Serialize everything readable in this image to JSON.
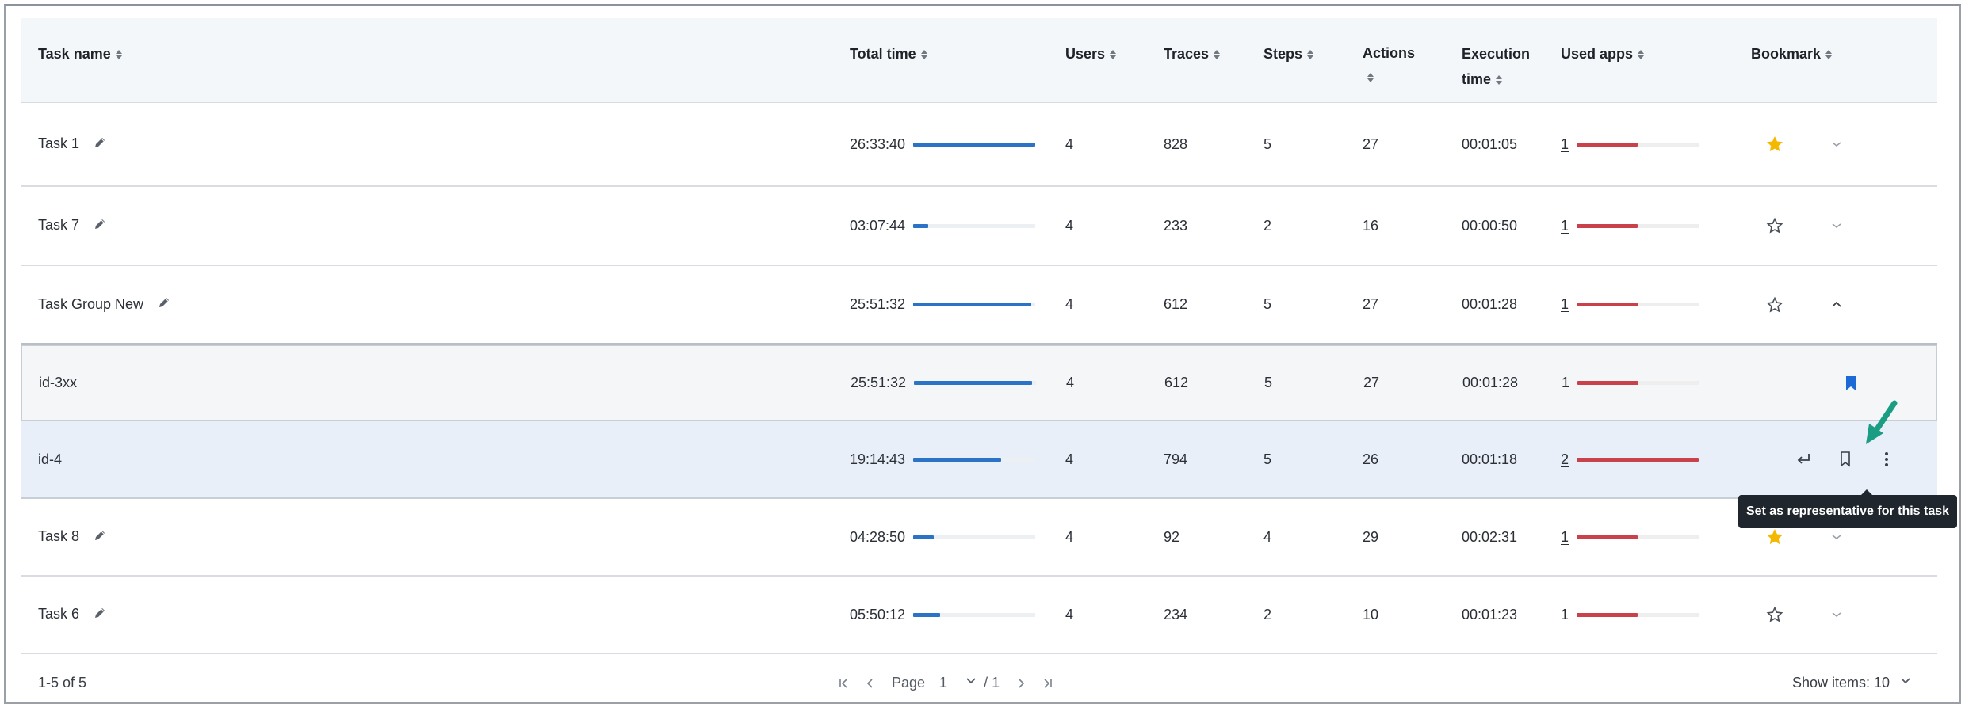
{
  "table": {
    "columns": [
      {
        "label": "Task name"
      },
      {
        "label": "Total time"
      },
      {
        "label": "Users"
      },
      {
        "label": "Traces"
      },
      {
        "label": "Steps"
      },
      {
        "label": "Actions"
      },
      {
        "label": "Execution time"
      },
      {
        "label": "Used apps"
      },
      {
        "label": "Bookmark"
      }
    ],
    "rows": [
      {
        "name": "Task 1",
        "total": "26:33:40",
        "bar": 1.0,
        "users": "4",
        "traces": "828",
        "steps": "5",
        "actions": "27",
        "exec": "00:01:05",
        "apps": "1",
        "appbar": 0.5,
        "starred": true,
        "kind": "task"
      },
      {
        "name": "Task 7",
        "total": "03:07:44",
        "bar": 0.12,
        "users": "4",
        "traces": "233",
        "steps": "2",
        "actions": "16",
        "exec": "00:00:50",
        "apps": "1",
        "appbar": 0.5,
        "starred": false,
        "kind": "task"
      },
      {
        "name": "Task Group New",
        "total": "25:51:32",
        "bar": 0.97,
        "users": "4",
        "traces": "612",
        "steps": "5",
        "actions": "27",
        "exec": "00:01:28",
        "apps": "1",
        "appbar": 0.5,
        "starred": false,
        "kind": "group"
      },
      {
        "name": "id-3xx",
        "total": "25:51:32",
        "bar": 0.97,
        "users": "4",
        "traces": "612",
        "steps": "5",
        "actions": "27",
        "exec": "00:01:28",
        "apps": "1",
        "appbar": 0.5,
        "kind": "child-rep"
      },
      {
        "name": "id-4",
        "total": "19:14:43",
        "bar": 0.72,
        "users": "4",
        "traces": "794",
        "steps": "5",
        "actions": "26",
        "exec": "00:01:18",
        "apps": "2",
        "appbar": 1.0,
        "kind": "child-hover"
      },
      {
        "name": "Task 8",
        "total": "04:28:50",
        "bar": 0.17,
        "users": "4",
        "traces": "92",
        "steps": "4",
        "actions": "29",
        "exec": "00:02:31",
        "apps": "1",
        "appbar": 0.5,
        "starred": true,
        "kind": "task"
      },
      {
        "name": "Task 6",
        "total": "05:50:12",
        "bar": 0.22,
        "users": "4",
        "traces": "234",
        "steps": "2",
        "actions": "10",
        "exec": "00:01:23",
        "apps": "1",
        "appbar": 0.5,
        "starred": false,
        "kind": "task"
      }
    ]
  },
  "tooltip": {
    "text": "Set as representative for this task"
  },
  "footer": {
    "count": "1-5 of 5",
    "page_label": "Page",
    "page_value": "1",
    "page_total": "/ 1",
    "show_items": "Show items: 10"
  },
  "colors": {
    "accent": "#2a73c7",
    "app_bar": "#c9414a",
    "star": "#f5b800",
    "annotation_arrow": "#1a9d82"
  },
  "icons": [
    "pencil-icon",
    "star-icon",
    "chevron-down-icon",
    "chevron-up-icon",
    "bookmark-icon",
    "return-icon",
    "more-vertical-icon",
    "first-page-icon",
    "prev-page-icon",
    "next-page-icon",
    "last-page-icon",
    "sort-icon"
  ]
}
